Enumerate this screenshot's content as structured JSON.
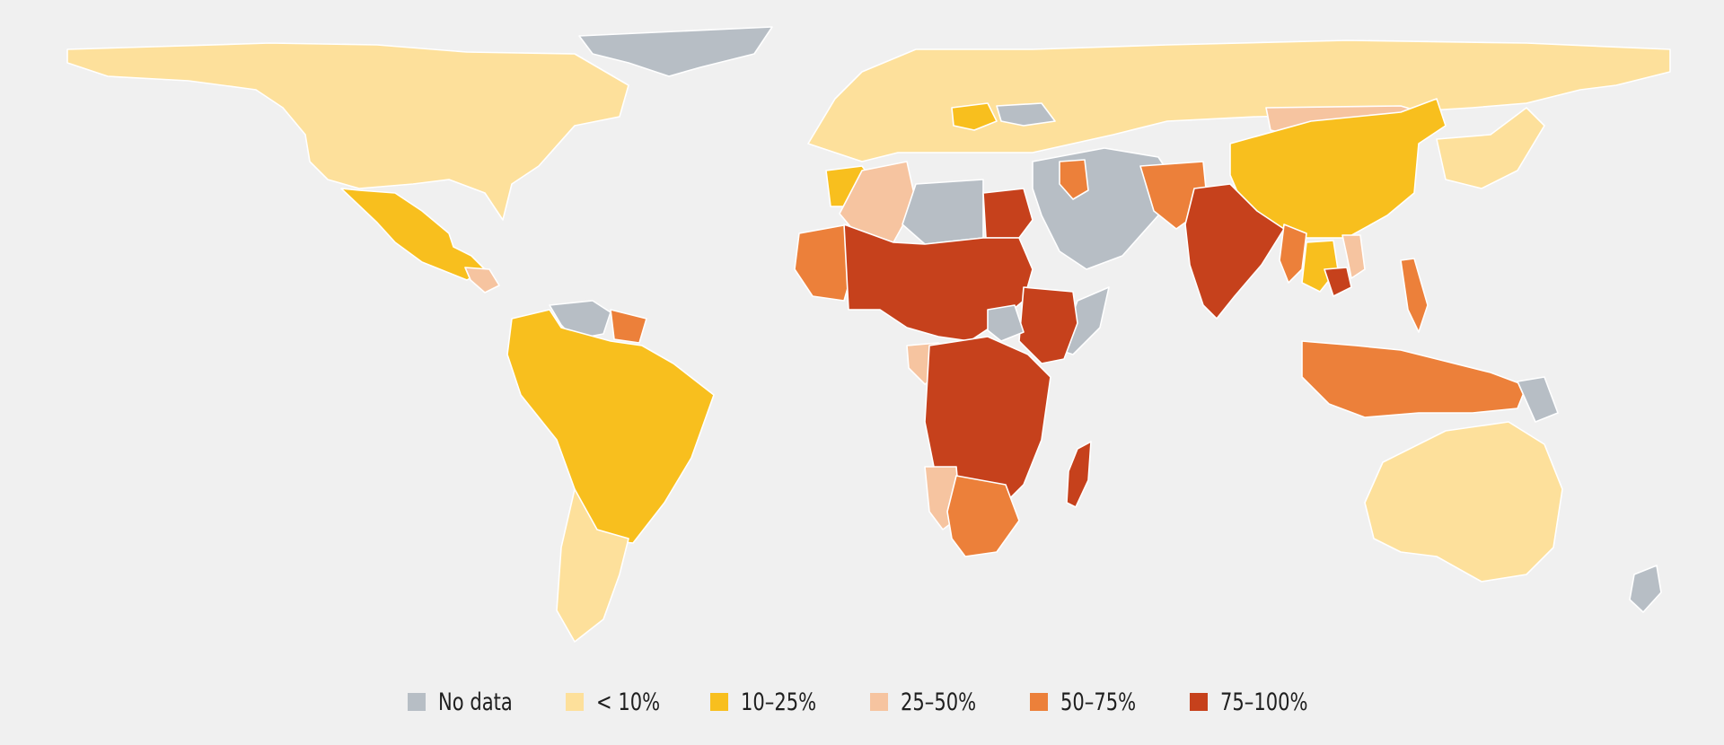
{
  "map": {
    "legend": [
      {
        "id": "no-data",
        "label": "No data",
        "color": "#b7bec5"
      },
      {
        "id": "lt-10",
        "label": "< 10%",
        "color": "#fde09b"
      },
      {
        "id": "10-25",
        "label": "10–25%",
        "color": "#f8bf1e"
      },
      {
        "id": "25-50",
        "label": "25–50%",
        "color": "#f6c4a0"
      },
      {
        "id": "50-75",
        "label": "50–75%",
        "color": "#ec803a"
      },
      {
        "id": "75-100",
        "label": "75–100%",
        "color": "#c6411c"
      }
    ],
    "regions": [
      {
        "name": "north-america",
        "class": "lt-10"
      },
      {
        "name": "greenland",
        "class": "no-data"
      },
      {
        "name": "mexico-central-america",
        "class": "10-25"
      },
      {
        "name": "guatemala-honduras",
        "class": "25-50"
      },
      {
        "name": "venezuela-guyana",
        "class": "no-data"
      },
      {
        "name": "suriname-guiana",
        "class": "50-75"
      },
      {
        "name": "andes-brazil",
        "class": "10-25"
      },
      {
        "name": "southern-cone",
        "class": "lt-10"
      },
      {
        "name": "europe-russia",
        "class": "lt-10"
      },
      {
        "name": "eastern-europe-romania",
        "class": "10-25"
      },
      {
        "name": "ukraine-area",
        "class": "no-data"
      },
      {
        "name": "kazakhstan-mongolia",
        "class": "25-50"
      },
      {
        "name": "china",
        "class": "10-25"
      },
      {
        "name": "japan-korea",
        "class": "lt-10"
      },
      {
        "name": "morocco-tunisia",
        "class": "10-25"
      },
      {
        "name": "algeria",
        "class": "25-50"
      },
      {
        "name": "libya",
        "class": "no-data"
      },
      {
        "name": "egypt-sudan",
        "class": "75-100"
      },
      {
        "name": "west-africa-coast",
        "class": "50-75"
      },
      {
        "name": "sahel-central-africa",
        "class": "75-100"
      },
      {
        "name": "horn-of-africa",
        "class": "no-data"
      },
      {
        "name": "ethiopia-east-africa",
        "class": "75-100"
      },
      {
        "name": "south-sudan-car",
        "class": "no-data"
      },
      {
        "name": "gabon-congo",
        "class": "25-50"
      },
      {
        "name": "southern-central-africa",
        "class": "75-100"
      },
      {
        "name": "namibia",
        "class": "25-50"
      },
      {
        "name": "south-africa-botswana",
        "class": "50-75"
      },
      {
        "name": "madagascar",
        "class": "75-100"
      },
      {
        "name": "middle-east",
        "class": "no-data"
      },
      {
        "name": "iraq",
        "class": "50-75"
      },
      {
        "name": "afghanistan-pakistan",
        "class": "50-75"
      },
      {
        "name": "india-bangladesh",
        "class": "75-100"
      },
      {
        "name": "myanmar",
        "class": "50-75"
      },
      {
        "name": "thailand-laos",
        "class": "10-25"
      },
      {
        "name": "cambodia",
        "class": "75-100"
      },
      {
        "name": "vietnam",
        "class": "25-50"
      },
      {
        "name": "philippines",
        "class": "50-75"
      },
      {
        "name": "indonesia",
        "class": "50-75"
      },
      {
        "name": "papua-new-guinea",
        "class": "no-data"
      },
      {
        "name": "australia",
        "class": "lt-10"
      },
      {
        "name": "new-zealand",
        "class": "no-data"
      }
    ]
  }
}
